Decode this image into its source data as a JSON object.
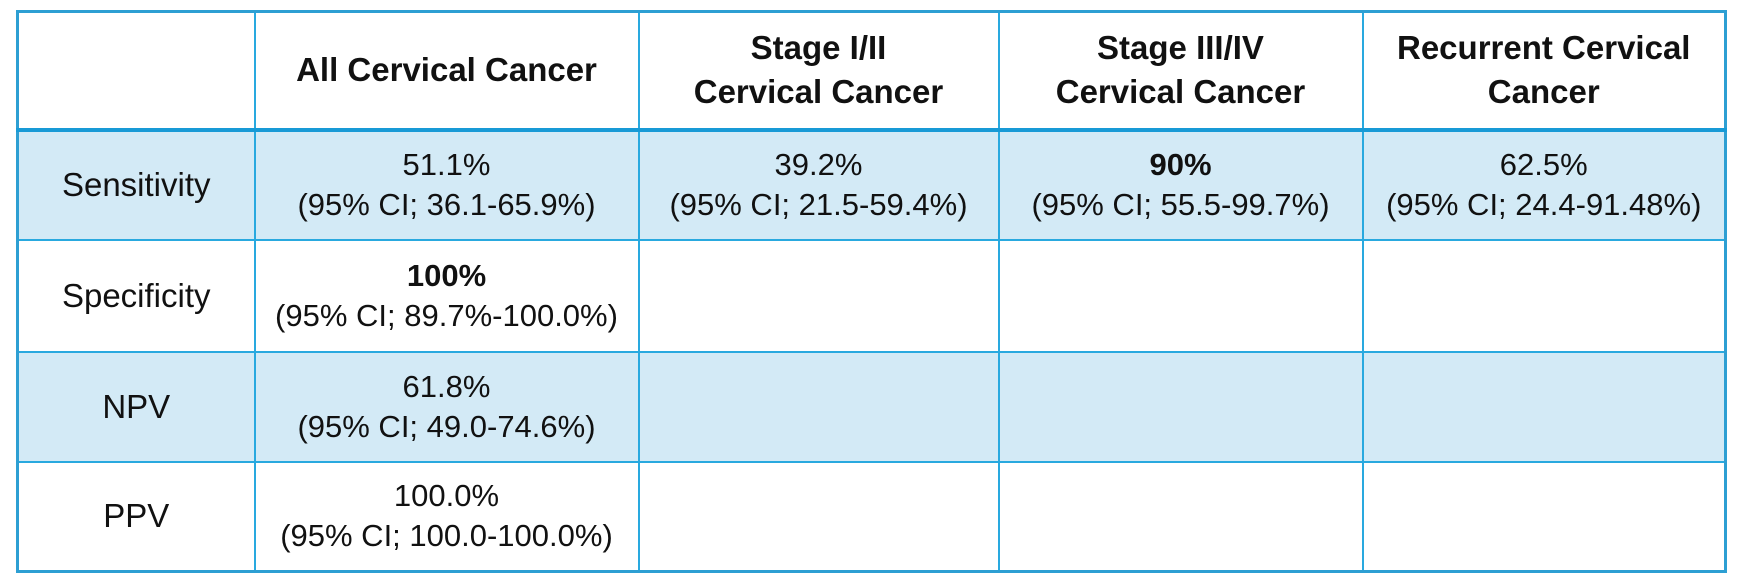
{
  "table": {
    "header": {
      "corner": "",
      "columns": [
        {
          "line1": "All Cervical Cancer",
          "line2": ""
        },
        {
          "line1": "Stage I/II",
          "line2": "Cervical Cancer"
        },
        {
          "line1": "Stage III/IV",
          "line2": "Cervical Cancer"
        },
        {
          "line1": "Recurrent Cervical",
          "line2": "Cancer"
        }
      ]
    },
    "rows": [
      {
        "label": "Sensitivity",
        "cells": [
          {
            "value": "51.1%",
            "ci": "(95% CI; 36.1-65.9%)",
            "bold": false
          },
          {
            "value": "39.2%",
            "ci": "(95% CI; 21.5-59.4%)",
            "bold": false
          },
          {
            "value": "90%",
            "ci": "(95% CI; 55.5-99.7%)",
            "bold": true
          },
          {
            "value": "62.5%",
            "ci": "(95% CI; 24.4-91.48%)",
            "bold": false
          }
        ]
      },
      {
        "label": "Specificity",
        "cells": [
          {
            "value": "100%",
            "ci": "(95% CI; 89.7%-100.0%)",
            "bold": true
          },
          {
            "value": "",
            "ci": "",
            "bold": false
          },
          {
            "value": "",
            "ci": "",
            "bold": false
          },
          {
            "value": "",
            "ci": "",
            "bold": false
          }
        ]
      },
      {
        "label": "NPV",
        "cells": [
          {
            "value": "61.8%",
            "ci": "(95% CI; 49.0-74.6%)",
            "bold": false
          },
          {
            "value": "",
            "ci": "",
            "bold": false
          },
          {
            "value": "",
            "ci": "",
            "bold": false
          },
          {
            "value": "",
            "ci": "",
            "bold": false
          }
        ]
      },
      {
        "label": "PPV",
        "cells": [
          {
            "value": "100.0%",
            "ci": "(95% CI; 100.0-100.0%)",
            "bold": false
          },
          {
            "value": "",
            "ci": "",
            "bold": false
          },
          {
            "value": "",
            "ci": "",
            "bold": false
          },
          {
            "value": "",
            "ci": "",
            "bold": false
          }
        ]
      }
    ],
    "colors": {
      "grid_line": "#29A9DF",
      "outer_border": "#2D9FD3",
      "header_separator": "#189AD6",
      "row_highlight": "#D3EAF6",
      "row_plain": "#FFFFFF",
      "text": "#111111"
    }
  },
  "chart_data": {
    "type": "table",
    "columns": [
      "",
      "All Cervical Cancer",
      "Stage I/II Cervical Cancer",
      "Stage III/IV Cervical Cancer",
      "Recurrent Cervical Cancer"
    ],
    "rows": [
      [
        "Sensitivity",
        "51.1% (95% CI; 36.1-65.9%)",
        "39.2% (95% CI; 21.5-59.4%)",
        "90% (95% CI; 55.5-99.7%)",
        "62.5% (95% CI; 24.4-91.48%)"
      ],
      [
        "Specificity",
        "100% (95% CI; 89.7%-100.0%)",
        "",
        "",
        ""
      ],
      [
        "NPV",
        "61.8% (95% CI; 49.0-74.6%)",
        "",
        "",
        ""
      ],
      [
        "PPV",
        "100.0% (95% CI; 100.0-100.0%)",
        "",
        "",
        ""
      ]
    ]
  }
}
